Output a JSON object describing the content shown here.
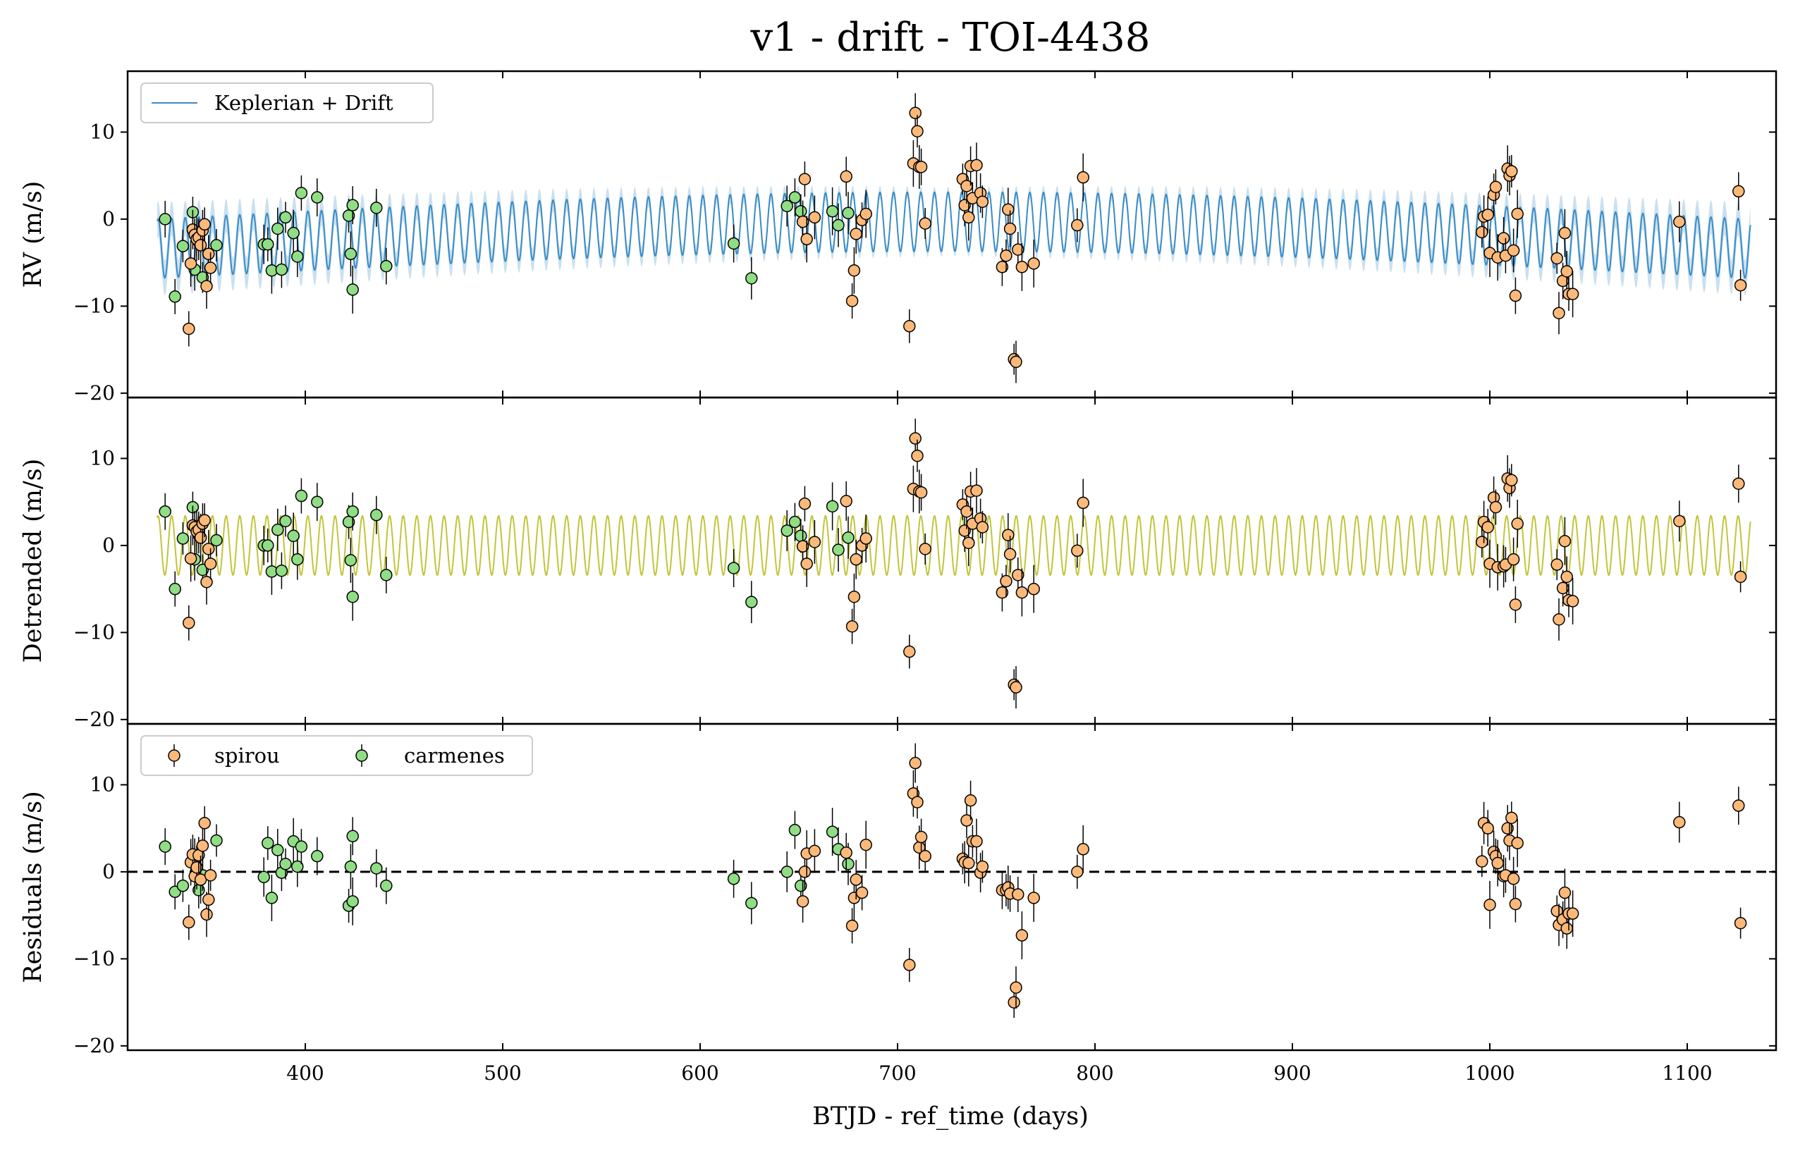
{
  "chart_data": {
    "title": "v1 - drift - TOI-4438",
    "xlabel": "BTJD - ref_time (days)",
    "xlim": [
      310,
      1145
    ],
    "xticks": [
      400,
      500,
      600,
      700,
      800,
      900,
      1000,
      1100
    ],
    "colors": {
      "spirou": "#fdb97a",
      "carmenes": "#90dd85",
      "model": "#3a8cc6",
      "model_band": "#b9d5ea",
      "sinusoid": "#c2c43a",
      "zero_line": "#000000"
    },
    "model": {
      "period_days": 6.9,
      "amplitude_ms": 3.4,
      "x_range": [
        325,
        1132
      ]
    },
    "legend": {
      "model_label": "Keplerian + Drift",
      "spirou_label": "spirou",
      "carmenes_label": "carmenes"
    },
    "panels": [
      {
        "type": "scatter+line",
        "ylabel": "RV (m/s)",
        "ylim": [
          -20.5,
          17
        ],
        "yticks": [
          10,
          0,
          -10,
          -20
        ]
      },
      {
        "type": "scatter+line",
        "ylabel": "Detrended (m/s)",
        "ylim": [
          -20.5,
          17
        ],
        "yticks": [
          10,
          0,
          -10,
          -20
        ]
      },
      {
        "type": "scatter",
        "ylabel": "Residuals (m/s)",
        "ylim": [
          -20.5,
          17
        ],
        "yticks": [
          10,
          0,
          -10,
          -20
        ]
      }
    ],
    "series": [
      {
        "name": "carmenes",
        "x": [
          329,
          334,
          338,
          343,
          344,
          346,
          348,
          355,
          379,
          381,
          383,
          386,
          388,
          390,
          394,
          396,
          398,
          406,
          422,
          423,
          424,
          424,
          436,
          441,
          617,
          626,
          644,
          648,
          651,
          667,
          670,
          675
        ],
        "rv": [
          0.0,
          -8.9,
          -3.1,
          0.8,
          -5.8,
          -2.6,
          -6.7,
          -3.0,
          -2.9,
          -2.9,
          -5.9,
          -1.1,
          -5.8,
          0.2,
          -1.6,
          -4.3,
          3.0,
          2.5,
          0.4,
          -4.0,
          1.6,
          -8.1,
          1.3,
          -5.4,
          -2.8,
          -6.8,
          1.5,
          2.5,
          0.9,
          0.9,
          -0.7,
          0.7
        ],
        "detrended": [
          3.9,
          -5.0,
          0.8,
          4.4,
          -1.6,
          1.2,
          -2.8,
          0.6,
          0.0,
          0.0,
          -3.0,
          1.8,
          -2.9,
          2.8,
          1.1,
          -1.6,
          5.7,
          5.0,
          2.7,
          -1.7,
          3.9,
          -5.9,
          3.5,
          -3.4,
          -2.6,
          -6.5,
          1.7,
          2.7,
          1.1,
          4.5,
          -0.5,
          0.9
        ],
        "residuals": [
          2.9,
          -2.3,
          -1.6,
          1.3,
          1.4,
          -2.1,
          -0.4,
          3.6,
          -0.6,
          3.3,
          -3.0,
          2.5,
          -0.1,
          0.9,
          3.5,
          0.6,
          2.9,
          1.8,
          -3.9,
          0.6,
          4.1,
          -3.4,
          0.4,
          -1.6,
          -0.8,
          -3.6,
          0.0,
          4.8,
          -1.6,
          4.6,
          2.6,
          0.9
        ]
      },
      {
        "name": "spirou",
        "x": [
          341,
          342,
          343,
          344,
          345,
          346,
          347,
          348,
          349,
          350,
          351,
          352,
          652,
          653,
          654,
          658,
          674,
          677,
          678,
          679,
          682,
          684,
          706,
          708,
          709,
          710,
          711,
          712,
          714,
          733,
          734,
          735,
          736,
          737,
          738,
          740,
          742,
          743,
          753,
          755,
          756,
          757,
          759,
          760,
          761,
          763,
          769,
          791,
          794,
          996,
          997,
          999,
          1000,
          1002,
          1003,
          1004,
          1007,
          1008,
          1009,
          1010,
          1011,
          1012,
          1013,
          1014,
          1034,
          1035,
          1037,
          1038,
          1039,
          1040,
          1042,
          1096,
          1126,
          1127
        ],
        "rv": [
          -12.6,
          -5.1,
          -1.2,
          -1.8,
          -2.3,
          -2.1,
          -3.0,
          -1.3,
          -0.6,
          -7.7,
          -4.0,
          -5.6,
          -0.3,
          4.6,
          -2.3,
          0.2,
          4.9,
          -9.4,
          -5.9,
          -1.7,
          -0.1,
          0.6,
          -12.3,
          6.4,
          12.2,
          10.1,
          6.0,
          6.0,
          -0.5,
          4.6,
          1.6,
          3.8,
          0.2,
          6.1,
          2.4,
          6.2,
          3.0,
          2.0,
          -5.5,
          -4.2,
          1.1,
          -1.1,
          -16.1,
          -16.4,
          -3.5,
          -5.5,
          -5.1,
          -0.7,
          4.8,
          -1.5,
          0.3,
          0.5,
          -3.9,
          2.8,
          3.7,
          -4.4,
          -2.2,
          -4.2,
          5.8,
          5.0,
          5.5,
          -3.6,
          -8.8,
          0.6,
          -4.5,
          -10.8,
          -7.1,
          -1.6,
          -6.0,
          -8.6,
          -8.6,
          -0.3,
          3.2,
          -7.6
        ],
        "detrended": [
          -8.9,
          -1.5,
          2.3,
          2.1,
          1.6,
          1.8,
          0.9,
          2.5,
          2.9,
          -4.2,
          -0.4,
          -2.1,
          -0.1,
          4.8,
          -2.1,
          0.4,
          5.1,
          -9.3,
          -5.9,
          -1.6,
          0.0,
          0.8,
          -12.2,
          6.5,
          12.3,
          10.3,
          6.2,
          6.1,
          -0.4,
          4.7,
          1.7,
          3.9,
          0.3,
          6.2,
          2.5,
          6.3,
          3.1,
          2.1,
          -5.4,
          -4.1,
          1.2,
          -1.0,
          -16.0,
          -16.3,
          -3.4,
          -5.4,
          -5.0,
          -0.6,
          4.9,
          0.4,
          2.7,
          2.1,
          -2.1,
          5.5,
          4.4,
          -2.5,
          -2.4,
          -2.2,
          7.7,
          6.6,
          7.5,
          -1.6,
          -6.8,
          2.5,
          -2.2,
          -8.5,
          -4.9,
          0.5,
          -3.6,
          -6.3,
          -6.4,
          2.8,
          7.1,
          -3.6
        ],
        "residuals": [
          -5.8,
          1.1,
          2.0,
          -0.5,
          0.5,
          1.9,
          -0.9,
          3.0,
          5.6,
          -4.9,
          -3.2,
          -0.4,
          -3.4,
          0.0,
          2.1,
          2.4,
          2.2,
          -6.2,
          -3.0,
          -0.9,
          -2.4,
          3.1,
          -10.7,
          9.0,
          12.5,
          8.0,
          2.8,
          4.0,
          1.8,
          1.5,
          1.1,
          5.9,
          1.0,
          8.2,
          3.5,
          3.5,
          -0.1,
          0.6,
          -2.1,
          -2.1,
          -1.8,
          -2.5,
          -15.0,
          -13.3,
          -2.6,
          -7.3,
          -3.0,
          0.0,
          2.6,
          1.2,
          5.6,
          5.0,
          -3.8,
          2.3,
          1.8,
          1.0,
          -0.5,
          -0.4,
          5.0,
          3.6,
          6.2,
          -0.8,
          -3.7,
          3.3,
          -4.5,
          -6.1,
          -5.5,
          -2.4,
          -6.5,
          -4.8,
          -4.8,
          5.7,
          7.6,
          -5.9
        ]
      }
    ],
    "grid": false,
    "legend_position": "top-left"
  }
}
